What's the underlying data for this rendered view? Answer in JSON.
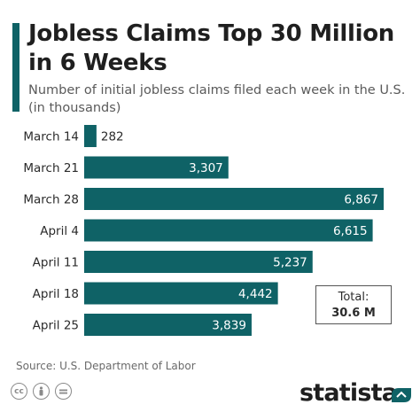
{
  "header": {
    "title": "Jobless Claims Top 30 Million in 6 Weeks",
    "subtitle": "Number of initial jobless claims filed each week in the U.S. (in thousands)"
  },
  "total": {
    "label": "Total:",
    "value": "30.6 M"
  },
  "footer": {
    "source": "Source: U.S. Department of Labor",
    "brand": "statista",
    "license_icons": [
      "cc-icon",
      "attribution-icon",
      "no-derivatives-icon"
    ]
  },
  "colors": {
    "bar": "#0f6266",
    "accent": "#0f6266",
    "bar_label": "#ffffff",
    "outside_label": "#2b2b2b"
  },
  "chart_data": {
    "type": "bar",
    "orientation": "horizontal",
    "title": "Jobless Claims Top 30 Million in 6 Weeks",
    "subtitle": "Number of initial jobless claims filed each week in the U.S. (in thousands)",
    "categories": [
      "March 14",
      "March 21",
      "March 28",
      "April 4",
      "April 11",
      "April 18",
      "April 25"
    ],
    "values": [
      282,
      3307,
      6867,
      6615,
      5237,
      4442,
      3839
    ],
    "value_labels": [
      "282",
      "3,307",
      "6,867",
      "6,615",
      "5,237",
      "4,442",
      "3,839"
    ],
    "xlim": [
      0,
      6867
    ],
    "grid": false,
    "legend": "none"
  }
}
